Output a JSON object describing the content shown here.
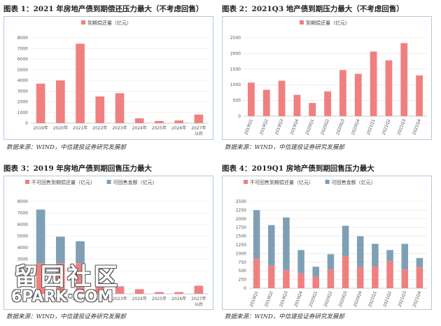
{
  "colors": {
    "pink": "#f08080",
    "blue": "#7f9fb5"
  },
  "watermark": {
    "cn": "留园社区",
    "en": "6PARK·COM"
  },
  "charts": [
    {
      "title": "图表 1：2021 年房地产债到期偿还压力最大（不考虑回售）",
      "source": "数据来源：WIND，中信建投证券研究发展部",
      "chart_data": {
        "type": "bar",
        "categories": [
          "2019年",
          "2020年",
          "2021年",
          "2022年",
          "2023年",
          "2024年",
          "2025年",
          "2026年",
          "2027年以后"
        ],
        "series": [
          {
            "name": "到期偿还量（亿元）",
            "values": [
              3700,
              4000,
              7450,
              2500,
              2800,
              450,
              200,
              250,
              800
            ]
          }
        ],
        "ylim": [
          0,
          8000
        ],
        "yticks": [
          0,
          1000,
          2000,
          3000,
          4000,
          5000,
          6000,
          7000,
          8000
        ],
        "legend": "top-center"
      }
    },
    {
      "title": "图表 2：2021Q3 地产债到期压力最大（不考虑回售）",
      "source": "数据来源：WIND，中信建投证券研究发展部",
      "chart_data": {
        "type": "bar",
        "categories": [
          "2019Q1",
          "2019Q2",
          "2019Q3",
          "2019Q4",
          "2020Q1",
          "2020Q2",
          "2020Q3",
          "2020Q4",
          "2021Q1",
          "2021Q2",
          "2021Q3",
          "2021Q4"
        ],
        "series": [
          {
            "name": "到期偿还量（亿元）",
            "values": [
              1070,
              840,
              1130,
              680,
              420,
              790,
              1470,
              1350,
              2060,
              1780,
              2330,
              1300
            ]
          }
        ],
        "ylim": [
          0,
          2500
        ],
        "yticks": [
          0,
          500,
          1000,
          1500,
          2000,
          2500
        ],
        "legend": "top-center"
      }
    },
    {
      "title": "图表 3：2019 年房地产债到期回售压力最大",
      "source": "数据来源：WIND，中信建投证券研究发展部",
      "chart_data": {
        "type": "bar",
        "stacked": true,
        "categories": [
          "2019年",
          "2020年",
          "2021年",
          "2022年",
          "2023年",
          "2024年",
          "2025年",
          "2026年",
          "2027年以后"
        ],
        "series": [
          {
            "name": "不可回售到期偿还量（亿元）",
            "values": [
              2650,
              2650,
              2650,
              700,
              600,
              400,
              150,
              150,
              700
            ]
          },
          {
            "name": "可回售金额（亿元）",
            "values": [
              4650,
              2300,
              1900,
              150,
              50,
              0,
              0,
              0,
              0
            ]
          }
        ],
        "ylim": [
          0,
          8000
        ],
        "yticks": [
          0,
          1000,
          2000,
          3000,
          4000,
          5000,
          6000,
          7000,
          8000
        ],
        "legend": "top-center"
      }
    },
    {
      "title": "图表 4：2019Q1 房地产债到期回售压力最大",
      "source": "数据来源：WIND，中信建投证券研究发展部",
      "chart_data": {
        "type": "bar",
        "stacked": true,
        "categories": [
          "2019Q1",
          "2019Q2",
          "2019Q3",
          "2019Q4",
          "2020Q1",
          "2020Q2",
          "2020Q3",
          "2020Q4",
          "2021Q1",
          "2021Q2",
          "2021Q3",
          "2021Q4"
        ],
        "series": [
          {
            "name": "不可回售到期偿还量（亿元）",
            "values": [
              850,
              650,
              520,
              430,
              330,
              540,
              920,
              610,
              620,
              780,
              540,
              600
            ]
          },
          {
            "name": "可回售金额（亿元）",
            "values": [
              1400,
              1170,
              1520,
              670,
              290,
              440,
              880,
              890,
              660,
              320,
              740,
              270
            ]
          }
        ],
        "ylim": [
          0,
          2500
        ],
        "yticks": [
          0,
          250,
          500,
          750,
          1000,
          1250,
          1500,
          1750,
          2000,
          2250,
          2500
        ],
        "legend": "top-center"
      }
    }
  ]
}
